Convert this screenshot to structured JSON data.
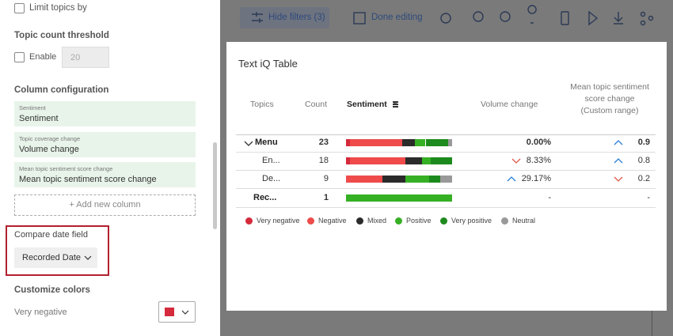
{
  "sidebar": {
    "limit_topics": "Limit topics by",
    "threshold_title": "Topic count threshold",
    "enable": "Enable",
    "threshold_value": "20",
    "column_title": "Column configuration",
    "columns": [
      {
        "label": "Sentiment",
        "value": "Sentiment"
      },
      {
        "label": "Topic coverage change",
        "value": "Volume change"
      },
      {
        "label": "Mean topic sentiment score change",
        "value": "Mean topic sentiment score change"
      }
    ],
    "add_column": "+ Add new column",
    "compare_title": "Compare date field",
    "compare_value": "Recorded Date",
    "colors_title": "Customize colors",
    "color_label": "Very negative"
  },
  "toolbar": {
    "hide_filters": "Hide filters (3)",
    "done_editing": "Done editing"
  },
  "table": {
    "title": "Text iQ Table",
    "headers": [
      "Topics",
      "Count",
      "Sentiment",
      "Volume change",
      "Mean topic sentiment score change (Custom range)"
    ],
    "rows": [
      {
        "topic": "Menu",
        "count": "23",
        "sentiment": [
          4,
          49,
          12,
          10,
          21,
          4
        ],
        "volume": "0.00%",
        "mean": "0.9"
      },
      {
        "topic": "En...",
        "count": "18",
        "sentiment": [
          4,
          52,
          16,
          8,
          20,
          0
        ],
        "volume": "8.33%",
        "mean": "0.8"
      },
      {
        "topic": "De...",
        "count": "9",
        "sentiment": [
          0,
          34,
          22,
          22,
          11,
          11
        ],
        "volume": "29.17%",
        "mean": "0.2"
      },
      {
        "topic": "Rec...",
        "count": "1",
        "sentiment": [
          0,
          0,
          0,
          100,
          0,
          0
        ],
        "volume": "-",
        "mean": "-"
      }
    ],
    "legend": [
      {
        "name": "Very negative",
        "color": "#d42a3c"
      },
      {
        "name": "Negative",
        "color": "#ef4b4b"
      },
      {
        "name": "Mixed",
        "color": "#2b2b2b"
      },
      {
        "name": "Positive",
        "color": "#36b024"
      },
      {
        "name": "Very positive",
        "color": "#1d8a1d"
      },
      {
        "name": "Neutral",
        "color": "#999999"
      }
    ]
  }
}
